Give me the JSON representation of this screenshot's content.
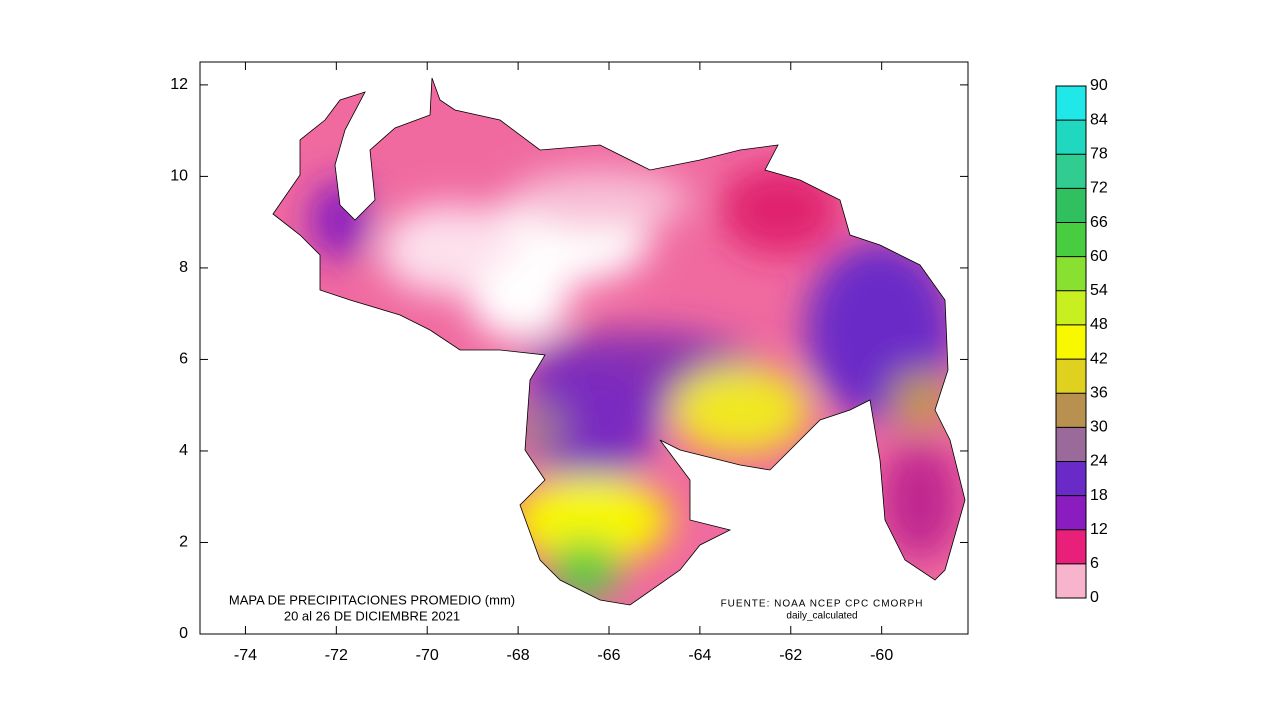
{
  "chart_data": {
    "type": "map",
    "title": "MAPA DE PRECIPITACIONES PROMEDIO (mm)",
    "subtitle": "20 al 26 DE DICIEMBRE 2021",
    "source": "FUENTE: NOAA NCEP CPC CMORPH",
    "source_note": "daily_calculated",
    "xlim": [
      -75,
      -58.1
    ],
    "ylim": [
      0,
      12.5
    ],
    "xticks": [
      -74,
      -72,
      -70,
      -68,
      -66,
      -64,
      -62,
      -60
    ],
    "yticks": [
      0,
      2,
      4,
      6,
      8,
      10,
      12
    ],
    "colorbar": {
      "lim": [
        0,
        90
      ],
      "ticks": [
        0,
        6,
        12,
        18,
        24,
        30,
        36,
        42,
        48,
        54,
        60,
        66,
        72,
        78,
        84,
        90
      ],
      "colors": [
        "#f8b4cc",
        "#e8207a",
        "#8a1cc0",
        "#6a2ac8",
        "#9a6a9a",
        "#b89050",
        "#e0d020",
        "#f8f800",
        "#c8f020",
        "#88e030",
        "#48cc40",
        "#30c060",
        "#30cc90",
        "#20d8c0",
        "#20e8e8"
      ]
    }
  }
}
